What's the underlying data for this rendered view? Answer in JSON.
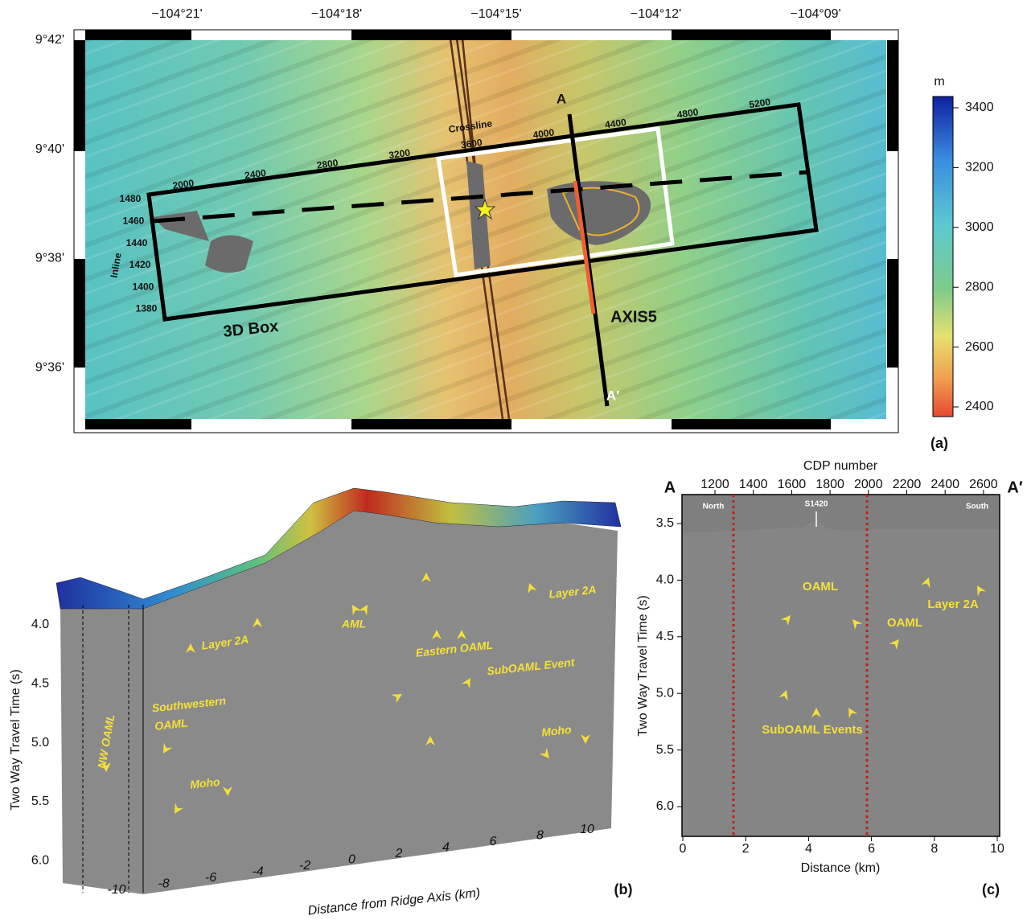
{
  "panel_a": {
    "label": "(a)",
    "lon_labels": [
      "−104°21'",
      "−104°18'",
      "−104°15'",
      "−104°12'",
      "−104°09'"
    ],
    "lat_labels": [
      "9°42'",
      "9°40'",
      "9°38'",
      "9°36'"
    ],
    "colorbar": {
      "unit": "m",
      "ticks": [
        "3400",
        "3200",
        "3000",
        "2800",
        "2600",
        "2400"
      ]
    },
    "crossline_title": "Crossline",
    "crossline_numbers": [
      "2000",
      "2400",
      "2800",
      "3200",
      "3600",
      "4000",
      "4400",
      "4800",
      "5200"
    ],
    "inline_title": "Inline",
    "inline_numbers": [
      "1480",
      "1460",
      "1440",
      "1420",
      "1400",
      "1380"
    ],
    "box_label": "3D Box",
    "profile_label": "AXIS5",
    "start_label": "A",
    "end_label": "A′"
  },
  "panel_b": {
    "label": "(b)",
    "y_axis_title": "Two Way Travel Time (s)",
    "y_ticks": [
      "4.0",
      "4.5",
      "5.0",
      "5.5",
      "6.0"
    ],
    "x_axis_title": "Distance from Ridge Axis (km)",
    "x_ticks": [
      "-10",
      "-8",
      "-6",
      "-4",
      "-2",
      "0",
      "2",
      "4",
      "6",
      "8",
      "10"
    ],
    "annotations": [
      "Layer 2A",
      "AML",
      "Eastern OAML",
      "SubOAML Event",
      "Layer 2A",
      "Southwestern",
      "OAML",
      "NW OAML",
      "Moho",
      "Moho"
    ]
  },
  "panel_c": {
    "label": "(c)",
    "top_axis_title": "CDP number",
    "top_ticks": [
      "1200",
      "1400",
      "1600",
      "1800",
      "2000",
      "2200",
      "2400",
      "2600"
    ],
    "y_axis_title": "Two Way Travel Time (s)",
    "y_ticks": [
      "3.5",
      "4.0",
      "4.5",
      "5.0",
      "5.5",
      "6.0"
    ],
    "x_axis_title": "Distance (km)",
    "x_ticks": [
      "0",
      "2",
      "4",
      "6",
      "8",
      "10"
    ],
    "start_label": "A",
    "end_label": "A′",
    "inset_labels": [
      "North",
      "S1420",
      "South"
    ],
    "annotations": [
      "OAML",
      "OAML",
      "Layer 2A",
      "SubOAML Events"
    ]
  }
}
